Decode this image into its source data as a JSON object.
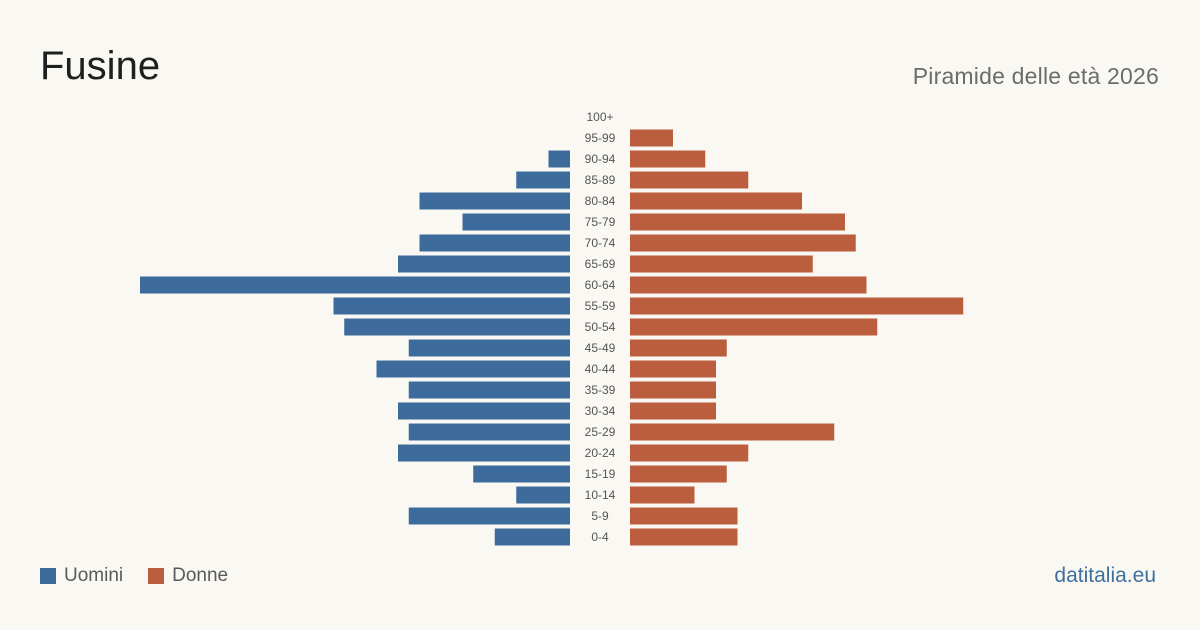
{
  "header": {
    "title": "Fusine",
    "subtitle": "Piramide delle età 2026"
  },
  "legend": {
    "men_label": "Uomini",
    "women_label": "Donne"
  },
  "brand": "datitalia.eu",
  "colors": {
    "men": "#3c6b9c",
    "women": "#bb5e3e",
    "background": "#faf8f3",
    "label": "#555555"
  },
  "chart_data": {
    "type": "bar",
    "orientation": "horizontal-pyramid",
    "categories": [
      "100+",
      "95-99",
      "90-94",
      "85-89",
      "80-84",
      "75-79",
      "70-74",
      "65-69",
      "60-64",
      "55-59",
      "50-54",
      "45-49",
      "40-44",
      "35-39",
      "30-34",
      "25-29",
      "20-24",
      "15-19",
      "10-14",
      "5-9",
      "0-4"
    ],
    "series": [
      {
        "name": "Uomini",
        "values": [
          0,
          0,
          2,
          5,
          14,
          10,
          14,
          16,
          40,
          22,
          21,
          15,
          18,
          15,
          16,
          15,
          16,
          9,
          5,
          15,
          7
        ]
      },
      {
        "name": "Donne",
        "values": [
          0,
          4,
          7,
          11,
          16,
          20,
          21,
          17,
          22,
          31,
          23,
          9,
          8,
          8,
          8,
          19,
          11,
          9,
          6,
          10,
          10
        ]
      }
    ]
  }
}
